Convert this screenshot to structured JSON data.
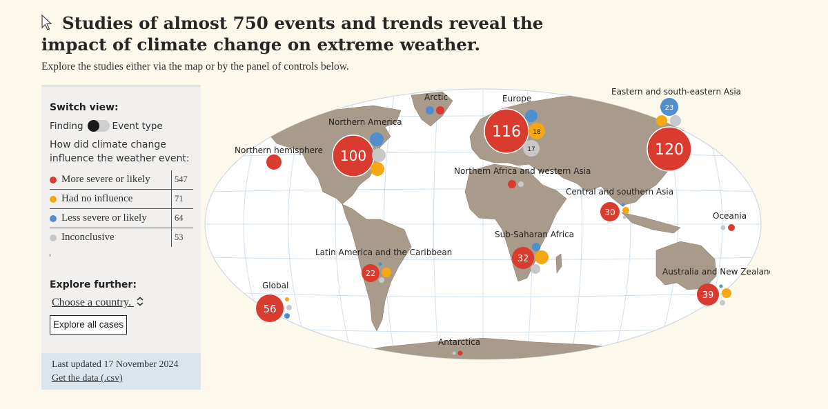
{
  "header": {
    "title": "Studies of almost 750 events and trends reveal the impact of climate change on extreme weather.",
    "subtitle": "Explore the studies either via the map or by the panel of controls below."
  },
  "panel": {
    "switch_view_label": "Switch view:",
    "toggle_left": "Finding",
    "toggle_right": "Event type",
    "question": "How did climate change influence the weather event:",
    "legend": [
      {
        "label": "More severe or likely",
        "count": "547",
        "color": "#d93b2f"
      },
      {
        "label": "Had no influence",
        "count": "71",
        "color": "#f5a812"
      },
      {
        "label": "Less severe or likely",
        "count": "64",
        "color": "#4f8fcf"
      },
      {
        "label": "Inconclusive",
        "count": "53",
        "color": "#c8c8c8"
      }
    ],
    "explore_label": "Explore further:",
    "country_select": "Choose a country.",
    "explore_all": "Explore all cases",
    "updated": "Last updated 17 November 2024",
    "data_link": "Get the data (.csv)"
  },
  "colors": {
    "more": "#d93b2f",
    "none": "#f5a812",
    "less": "#4f8fcf",
    "inconclusive": "#c8c8c8",
    "land": "#a89a8a",
    "ocean": "#ffffff",
    "page": "#fdf8ec"
  },
  "regions": {
    "northern_hemisphere": {
      "label": "Northern hemisphere"
    },
    "arctic": {
      "label": "Arctic"
    },
    "north_america": {
      "label": "Northern America",
      "more": "100"
    },
    "europe": {
      "label": "Europe",
      "more": "116",
      "none": "18",
      "inconclusive": "17"
    },
    "east_asia": {
      "label": "Eastern and south-eastern Asia",
      "more": "120",
      "less": "23"
    },
    "north_africa": {
      "label": "Northern Africa and western Asia"
    },
    "central_asia": {
      "label": "Central and southern Asia",
      "more": "30"
    },
    "oceania": {
      "label": "Oceania"
    },
    "sub_saharan": {
      "label": "Sub-Saharan Africa",
      "more": "32"
    },
    "latin_america": {
      "label": "Latin America and the Caribbean",
      "more": "22"
    },
    "australia": {
      "label": "Australia and New Zealand",
      "more": "39"
    },
    "global": {
      "label": "Global",
      "more": "56"
    },
    "antarctica": {
      "label": "Antarctica"
    }
  }
}
